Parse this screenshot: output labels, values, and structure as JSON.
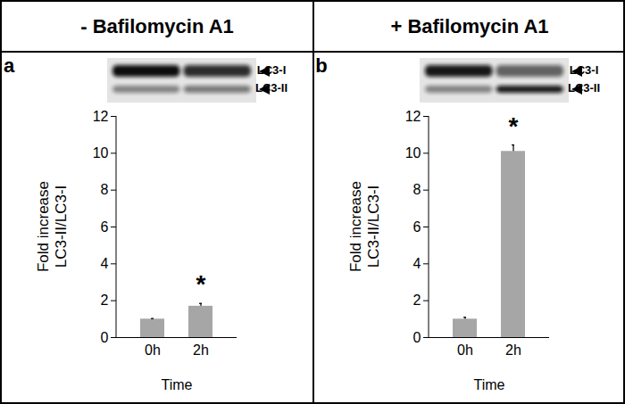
{
  "chart_data": [
    {
      "type": "bar",
      "title": "- Bafilomycin A1",
      "panel_label": "a",
      "blot_labels": [
        "LC3-I",
        "LC3-II"
      ],
      "x_label": "Time",
      "y_label": "Fold increase\nLC3-II/LC3-I",
      "categories": [
        "0h",
        "2h"
      ],
      "values": [
        1.0,
        1.7
      ],
      "errors": [
        0.03,
        0.15
      ],
      "color": "#a6a6a6",
      "ylim": [
        0,
        12
      ],
      "yticks": [
        0,
        2,
        4,
        6,
        8,
        10,
        12
      ],
      "annotations": [
        {
          "category": "2h",
          "text": "*"
        }
      ]
    },
    {
      "type": "bar",
      "title": "+ Bafilomycin A1",
      "panel_label": "b",
      "blot_labels": [
        "LC3-I",
        "LC3-II"
      ],
      "x_label": "Time",
      "y_label": "Fold increase\nLC3-II/LC3-I",
      "categories": [
        "0h",
        "2h"
      ],
      "values": [
        1.0,
        10.1
      ],
      "errors": [
        0.1,
        0.35
      ],
      "color": "#a6a6a6",
      "ylim": [
        0,
        12
      ],
      "yticks": [
        0,
        2,
        4,
        6,
        8,
        10,
        12
      ],
      "annotations": [
        {
          "category": "2h",
          "text": "*"
        }
      ]
    }
  ]
}
